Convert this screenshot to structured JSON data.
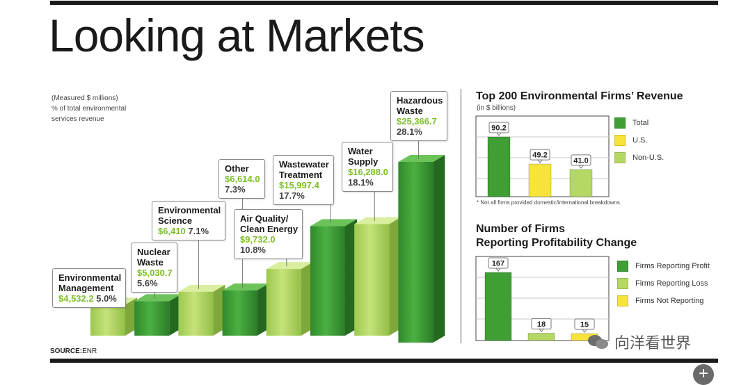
{
  "title": "Looking at Markets",
  "note": [
    "(Measured $ millions)",
    "% of total environmental",
    "services revenue"
  ],
  "source": {
    "label": "SOURCE:",
    "value": "ENR"
  },
  "colors": {
    "dark_green": "#3f9e34",
    "light_green": "#b5d865",
    "yellow": "#f7e339",
    "value_text": "#7cbf2a"
  },
  "chart_data": [
    {
      "type": "bar",
      "title": "Looking at Markets",
      "subtitle": "(Measured $ millions) % of total environmental services revenue",
      "categories": [
        "Environmental Management",
        "Nuclear Waste",
        "Environmental Science",
        "Other",
        "Air Quality/ Clean Energy",
        "Wastewater Treatment",
        "Water Supply",
        "Hazardous Waste"
      ],
      "values": [
        4532.2,
        5030.7,
        6410,
        6614.0,
        9732.0,
        15997.4,
        16288.0,
        25366.7
      ],
      "value_labels": [
        "$4,532.2",
        "$5,030.7",
        "$6,410",
        "$6,614.0",
        "$9,732.0",
        "$15,997.4",
        "$16,288.0",
        "$25,366.7"
      ],
      "percents": [
        "5.0%",
        "5.6%",
        "7.1%",
        "7.3%",
        "10.8%",
        "17.7%",
        "18.1%",
        "28.1%"
      ],
      "names": [
        "Environmental\nManagement",
        "Nuclear\nWaste",
        "Environmental\nScience",
        "Other",
        "Air Quality/\nClean Energy",
        "Wastewater\nTreatment",
        "Water\nSupply",
        "Hazardous\nWaste"
      ],
      "bar_colors": [
        "light",
        "dark",
        "light",
        "dark",
        "light",
        "dark",
        "light",
        "dark"
      ]
    },
    {
      "type": "bar",
      "title": "Top 200 Environmental Firms’ Revenue",
      "subtitle": "(in $ billions)",
      "categories": [
        "Total",
        "U.S.",
        "Non-U.S."
      ],
      "values": [
        90.2,
        49.2,
        41.0
      ],
      "labels": [
        "90.2",
        "49.2",
        "41.0"
      ],
      "colors": [
        "#3f9e34",
        "#f7e339",
        "#b5d865"
      ],
      "footnote": "* Not all firms provided domestic/international breakdowns.",
      "legend": [
        "Total",
        "U.S.",
        "Non-U.S."
      ]
    },
    {
      "type": "bar",
      "title": "Number of Firms",
      "title_line2": "Reporting Profitability Change",
      "categories": [
        "Firms Reporting Proﬁt",
        "Firms Reporting Loss",
        "Firms Not Reporting"
      ],
      "values": [
        167,
        18,
        15
      ],
      "labels": [
        "167",
        "18",
        "15"
      ],
      "colors": [
        "#3f9e34",
        "#b5d865",
        "#f7e339"
      ],
      "legend": [
        "Firms Reporting Proﬁt",
        "Firms Reporting Loss",
        "Firms Not Reporting"
      ]
    }
  ],
  "watermark": "向洋看世界"
}
